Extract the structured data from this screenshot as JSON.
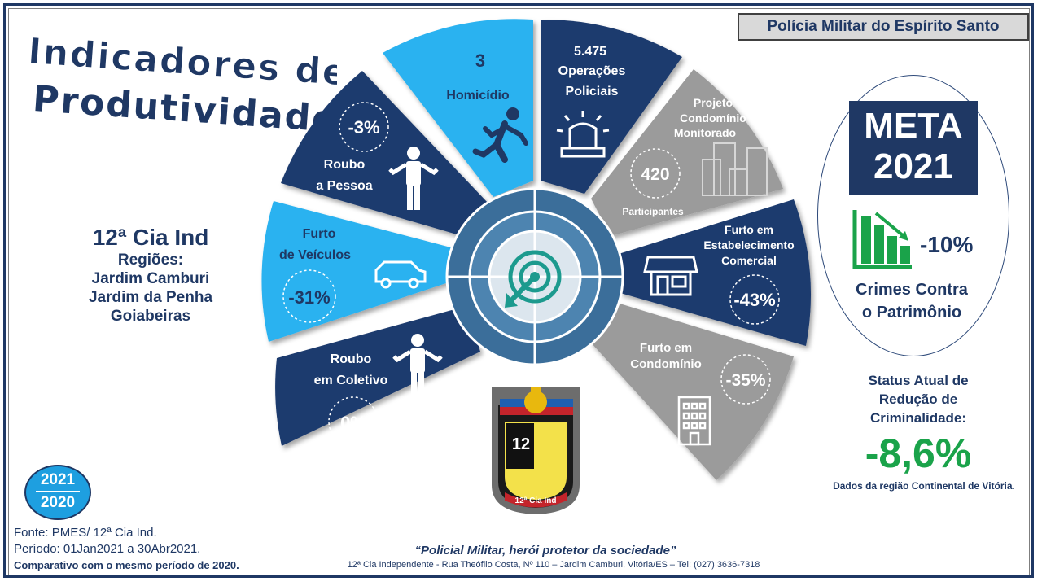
{
  "header": {
    "title_line1": "Indicadores de",
    "title_line2": "Produtividade",
    "agency": "Polícia Militar do Espírito Santo"
  },
  "unit": {
    "name": "12ª Cia Ind",
    "regions_label": "Regiões:",
    "regions": [
      "Jardim Camburi",
      "Jardim da Penha",
      "Goiabeiras"
    ]
  },
  "years": {
    "current": "2021",
    "previous": "2020"
  },
  "source": {
    "line1": "Fonte: PMES/ 12ª Cia Ind.",
    "line2": "Período: 01Jan2021 a 30Abr2021.",
    "line3": "Comparativo com o mesmo período de  2020."
  },
  "footer": {
    "motto": "“Policial Militar, herói protetor da sociedade”",
    "address": "12ª Cia Independente - Rua Theófilo Costa, Nº 110 – Jardim Camburi, Vitória/ES – Tel: (027) 3636-7318"
  },
  "segments": {
    "roubo_coletivo": {
      "label1": "Roubo",
      "label2": "em Coletivo",
      "value": "0%",
      "icon": "person-shrug-icon"
    },
    "furto_veiculos": {
      "label1": "Furto",
      "label2": "de Veículos",
      "value": "-31%",
      "icon": "car-icon"
    },
    "roubo_pessoa": {
      "label1": "Roubo",
      "label2": "a Pessoa",
      "value": "-3%",
      "icon": "person-shrug-icon"
    },
    "homicidio": {
      "value": "3",
      "label": "Homicídio",
      "icon": "running-person-icon"
    },
    "operacoes": {
      "value": "5.475",
      "label1": "Operações",
      "label2": "Policiais",
      "icon": "police-siren-icon"
    },
    "condominio_monitorado": {
      "label1": "Projeto",
      "label2": "Condomínio",
      "label3": "Monitorado",
      "value": "420",
      "sub": "Participantes",
      "icon": "buildings-icon"
    },
    "furto_estabelecimento": {
      "label1": "Furto em",
      "label2": "Estabelecimento",
      "label3": "Comercial",
      "value": "-43%",
      "icon": "storefront-icon"
    },
    "furto_condominio": {
      "label1": "Furto em",
      "label2": "Condomínio",
      "value": "-35%",
      "icon": "apartment-building-icon"
    }
  },
  "badge": {
    "number": "12",
    "text": "12ª Cia Ind"
  },
  "meta": {
    "title_line1": "META",
    "title_line2": "2021",
    "value": "-10%",
    "label_line1": "Crimes Contra",
    "label_line2": "o Patrimônio",
    "icon": "bar-chart-down-icon"
  },
  "status": {
    "label_line1": "Status Atual de",
    "label_line2": "Redução de",
    "label_line3": "Criminalidade:",
    "value": "-8,6%",
    "note": "Dados da região Continental de Vitória."
  },
  "colors": {
    "navy": "#1f3864",
    "dark_blue": "#1d3a6e",
    "light_blue": "#29b2f0",
    "gray": "#9b9b9b",
    "green": "#1aa34a"
  }
}
